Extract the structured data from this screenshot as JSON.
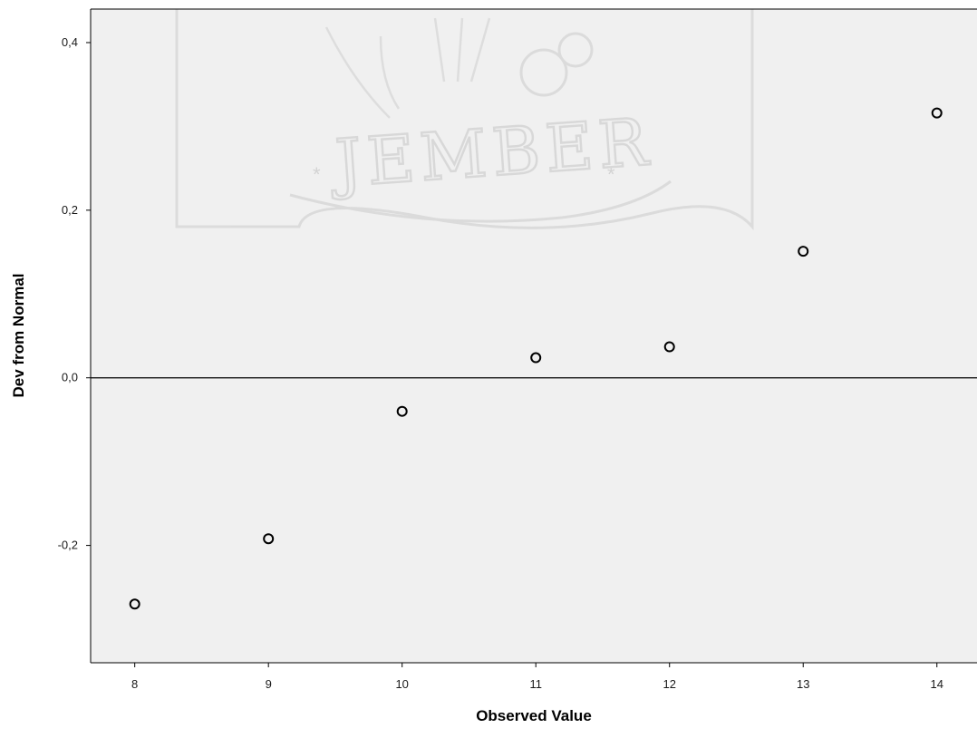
{
  "chart_data": {
    "type": "scatter",
    "xlabel": "Observed Value",
    "ylabel": "Dev from Normal",
    "xlim": [
      7.67,
      14.3
    ],
    "ylim": [
      -0.34,
      0.44
    ],
    "x_ticks": [
      8,
      9,
      10,
      11,
      12,
      13,
      14
    ],
    "y_ticks": [
      -0.2,
      0.0,
      0.2,
      0.4
    ],
    "y_tick_labels": [
      "-0,2",
      "0,0",
      "0,2",
      "0,4"
    ],
    "reference_line_y": 0.0,
    "grid": false,
    "series": [
      {
        "x": [
          8,
          9,
          10,
          11,
          12,
          13,
          14
        ],
        "y": [
          -0.27,
          -0.192,
          -0.04,
          0.024,
          0.037,
          0.151,
          0.316
        ]
      }
    ],
    "watermark_text": "JEMBER",
    "colors": {
      "plot_background": "#f0f0f0",
      "marker_stroke": "#000000",
      "axis_line": "#000000",
      "watermark": "#d6d6d6"
    }
  }
}
